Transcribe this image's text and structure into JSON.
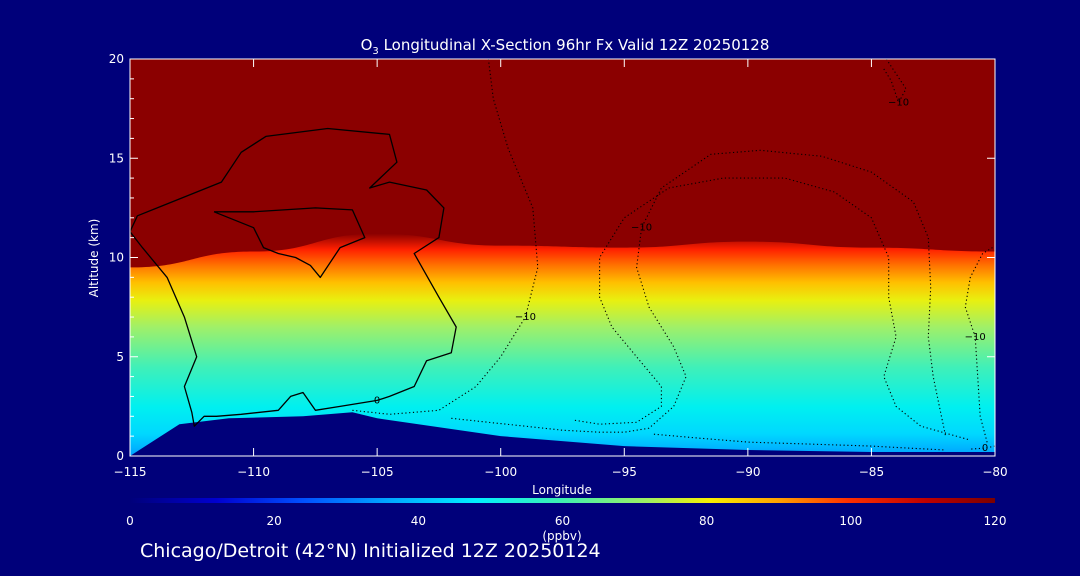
{
  "chart_data": {
    "type": "heatmap",
    "title_prefix": "O",
    "title_sub": "3",
    "title_rest": " Longitudinal X-Section 96hr  Fx Valid 12Z 20250128",
    "xlabel": "Longitude",
    "ylabel": "Altitude (km)",
    "xlim": [
      -115,
      -80
    ],
    "ylim": [
      0,
      20
    ],
    "x_ticks": [
      {
        "value": -115,
        "label": "−115"
      },
      {
        "value": -110,
        "label": "−110"
      },
      {
        "value": -105,
        "label": "−105"
      },
      {
        "value": -100,
        "label": "−100"
      },
      {
        "value": -95,
        "label": "−95"
      },
      {
        "value": -90,
        "label": "−90"
      },
      {
        "value": -85,
        "label": "−85"
      },
      {
        "value": -80,
        "label": "−80"
      }
    ],
    "y_ticks": [
      {
        "value": 0,
        "label": "0"
      },
      {
        "value": 5,
        "label": "5"
      },
      {
        "value": 10,
        "label": "10"
      },
      {
        "value": 15,
        "label": "15"
      },
      {
        "value": 20,
        "label": "20"
      }
    ],
    "colorbar": {
      "min": 0,
      "max": 120,
      "label": "(ppbv)",
      "ticks": [
        {
          "value": 0,
          "label": "0"
        },
        {
          "value": 20,
          "label": "20"
        },
        {
          "value": 40,
          "label": "40"
        },
        {
          "value": 60,
          "label": "60"
        },
        {
          "value": 80,
          "label": "80"
        },
        {
          "value": 100,
          "label": "100"
        },
        {
          "value": 120,
          "label": "120"
        }
      ]
    },
    "tropopause_height_km": [
      [
        -115,
        9.5
      ],
      [
        -110,
        10.3
      ],
      [
        -105,
        11.2
      ],
      [
        -100,
        10.6
      ],
      [
        -95,
        10.5
      ],
      [
        -90,
        10.8
      ],
      [
        -85,
        10.5
      ],
      [
        -80,
        10.3
      ]
    ],
    "terrain_height_km": [
      [
        -115,
        0
      ],
      [
        -113,
        1.6
      ],
      [
        -111,
        1.9
      ],
      [
        -108,
        2.0
      ],
      [
        -106,
        2.2
      ],
      [
        -105,
        1.9
      ],
      [
        -100,
        1.0
      ],
      [
        -95,
        0.5
      ],
      [
        -90,
        0.3
      ],
      [
        -85,
        0.2
      ],
      [
        -80,
        0.2
      ]
    ],
    "contours": [
      {
        "label": "0",
        "style": "solid",
        "points": [
          [
            -113.9,
            12.5
          ],
          [
            -112.5,
            13.2
          ],
          [
            -111.3,
            13.8
          ],
          [
            -110.5,
            15.3
          ],
          [
            -109.5,
            16.1
          ],
          [
            -107.0,
            16.5
          ],
          [
            -104.5,
            16.2
          ],
          [
            -104.2,
            14.8
          ],
          [
            -105.3,
            13.5
          ],
          [
            -104.5,
            13.8
          ],
          [
            -103.0,
            13.4
          ],
          [
            -102.3,
            12.5
          ],
          [
            -102.5,
            11.0
          ],
          [
            -103.5,
            10.2
          ],
          [
            -102.5,
            8.0
          ],
          [
            -101.8,
            6.5
          ],
          [
            -102.0,
            5.2
          ],
          [
            -103.0,
            4.8
          ],
          [
            -103.5,
            3.5
          ],
          [
            -104.5,
            3.0
          ],
          [
            -105.0,
            2.8
          ],
          [
            -105.5,
            2.7
          ],
          [
            -106.5,
            2.5
          ],
          [
            -107.5,
            2.3
          ],
          [
            -108.0,
            3.2
          ],
          [
            -108.5,
            3.0
          ],
          [
            -109.0,
            2.3
          ],
          [
            -110.5,
            2.1
          ],
          [
            -111.5,
            2.0
          ],
          [
            -112.0,
            2.0
          ],
          [
            -112.4,
            1.5
          ],
          [
            -112.5,
            2.2
          ],
          [
            -112.8,
            3.5
          ],
          [
            -112.3,
            5.0
          ],
          [
            -112.8,
            7.0
          ],
          [
            -113.5,
            9.0
          ],
          [
            -114.5,
            10.5
          ],
          [
            -115.0,
            11.3
          ],
          [
            -114.7,
            12.1
          ],
          [
            -113.9,
            12.5
          ]
        ]
      },
      {
        "label": "",
        "style": "solid",
        "points": [
          [
            -111.6,
            12.3
          ],
          [
            -110.0,
            12.3
          ],
          [
            -107.5,
            12.5
          ],
          [
            -106.0,
            12.4
          ],
          [
            -105.5,
            11.0
          ],
          [
            -106.5,
            10.5
          ],
          [
            -107.3,
            9.0
          ],
          [
            -107.7,
            9.6
          ],
          [
            -108.3,
            10.0
          ],
          [
            -109.0,
            10.2
          ],
          [
            -109.6,
            10.5
          ],
          [
            -110.0,
            11.5
          ],
          [
            -111.6,
            12.3
          ]
        ]
      },
      {
        "label": "−10",
        "style": "dotted",
        "points": [
          [
            -106.0,
            2.3
          ],
          [
            -104.5,
            2.1
          ],
          [
            -102.5,
            2.3
          ],
          [
            -101.0,
            3.5
          ],
          [
            -100.0,
            5.0
          ],
          [
            -99.0,
            7.0
          ],
          [
            -98.5,
            9.5
          ],
          [
            -98.7,
            12.5
          ],
          [
            -99.7,
            15.5
          ],
          [
            -100.3,
            18.0
          ],
          [
            -100.5,
            20.0
          ]
        ]
      },
      {
        "label": "−10",
        "style": "dotted",
        "points": [
          [
            -102.0,
            1.9
          ],
          [
            -100.5,
            1.7
          ],
          [
            -99.0,
            1.5
          ],
          [
            -97.5,
            1.3
          ],
          [
            -96.0,
            1.2
          ],
          [
            -95.0,
            1.2
          ],
          [
            -94.0,
            1.4
          ],
          [
            -93.0,
            2.5
          ],
          [
            -92.5,
            4.0
          ],
          [
            -93.0,
            5.5
          ],
          [
            -94.0,
            7.5
          ],
          [
            -94.5,
            9.5
          ],
          [
            -94.3,
            11.5
          ],
          [
            -93.5,
            13.5
          ],
          [
            -91.5,
            15.2
          ],
          [
            -89.5,
            15.4
          ],
          [
            -87.0,
            15.1
          ],
          [
            -85.0,
            14.3
          ],
          [
            -83.3,
            12.8
          ],
          [
            -82.7,
            11.0
          ],
          [
            -82.6,
            8.5
          ],
          [
            -82.7,
            6.0
          ],
          [
            -82.5,
            4.0
          ],
          [
            -82.2,
            2.2
          ],
          [
            -82.0,
            1.0
          ]
        ]
      },
      {
        "label": "",
        "style": "dotted",
        "points": [
          [
            -97.0,
            1.8
          ],
          [
            -96.0,
            1.6
          ],
          [
            -94.5,
            1.7
          ],
          [
            -93.5,
            2.5
          ],
          [
            -93.5,
            3.5
          ],
          [
            -94.5,
            5.0
          ],
          [
            -95.5,
            6.5
          ],
          [
            -96.0,
            8.0
          ],
          [
            -96.0,
            10.0
          ],
          [
            -95.0,
            12.0
          ],
          [
            -93.2,
            13.5
          ],
          [
            -91.0,
            14.0
          ],
          [
            -88.5,
            14.0
          ],
          [
            -86.5,
            13.3
          ],
          [
            -85.0,
            12.0
          ],
          [
            -84.3,
            10.0
          ],
          [
            -84.3,
            8.0
          ],
          [
            -84.0,
            6.0
          ],
          [
            -84.5,
            4.0
          ],
          [
            -84.0,
            2.5
          ],
          [
            -83.0,
            1.5
          ],
          [
            -81.0,
            0.8
          ]
        ]
      },
      {
        "label": "",
        "style": "dotted",
        "points": [
          [
            -93.8,
            1.1
          ],
          [
            -92.0,
            0.9
          ],
          [
            -90.0,
            0.7
          ],
          [
            -87.5,
            0.6
          ],
          [
            -85.0,
            0.5
          ],
          [
            -83.5,
            0.4
          ],
          [
            -82.0,
            0.3
          ]
        ]
      },
      {
        "label": "−10",
        "style": "dotted",
        "points": [
          [
            -80.1,
            10.5
          ],
          [
            -80.5,
            10.2
          ],
          [
            -81.0,
            9.0
          ],
          [
            -81.2,
            7.5
          ],
          [
            -80.8,
            6.0
          ],
          [
            -80.7,
            4.0
          ],
          [
            -80.6,
            2.0
          ],
          [
            -80.3,
            0.6
          ]
        ]
      },
      {
        "label": "−10",
        "style": "dotted",
        "points": [
          [
            -84.4,
            20.0
          ],
          [
            -83.6,
            18.5
          ],
          [
            -83.9,
            17.8
          ],
          [
            -84.2,
            18.9
          ],
          [
            -84.5,
            19.5
          ]
        ]
      },
      {
        "label": "0",
        "style": "dotted",
        "points": [
          [
            -80.0,
            0.5
          ],
          [
            -80.4,
            0.4
          ],
          [
            -81.0,
            0.35
          ]
        ]
      }
    ]
  },
  "footer": {
    "text": "Chicago/Detroit (42°N) Initialized 12Z 20250124"
  }
}
